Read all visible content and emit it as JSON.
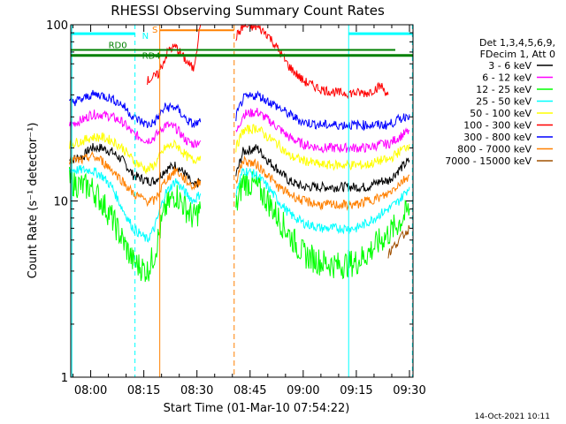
{
  "chart_data": {
    "type": "line",
    "title": "RHESSI Observing Summary Count Rates",
    "xlabel": "Start Time (01-Mar-10 07:54:22)",
    "ylabel": "Count Rate (s⁻¹ detector⁻¹)",
    "yscale": "log",
    "xlim": [
      "07:54:22",
      "09:31:00"
    ],
    "ylim": [
      1,
      100
    ],
    "x_ticks": [
      "08:00",
      "08:15",
      "08:30",
      "08:45",
      "09:00",
      "09:15",
      "09:30"
    ],
    "y_ticks": [
      "1",
      "10",
      "100"
    ],
    "grid": false,
    "legend_position": "right",
    "legend_header": [
      "Det 1,3,4,5,6,9,",
      "FDecim 1, Att 0"
    ],
    "series": [
      {
        "name": "3 - 6 keV",
        "color": "#000000",
        "x": [
          "07:54",
          "07:58",
          "08:00",
          "08:03",
          "08:06",
          "08:09",
          "08:12",
          "08:16",
          "08:18",
          "08:21",
          "08:24",
          "08:27",
          "08:29",
          "08:31",
          "08:38",
          "08:41",
          "08:43",
          "08:47",
          "08:50",
          "08:53",
          "08:56",
          "09:00",
          "09:05",
          "09:10",
          "09:15",
          "09:18",
          "09:22",
          "09:24",
          "09:27",
          "09:30"
        ],
        "values": [
          17,
          18,
          20,
          20,
          19,
          17,
          14,
          13,
          13,
          15,
          16,
          14,
          12,
          13,
          null,
          14,
          19,
          20,
          17,
          15,
          13,
          12,
          12,
          12,
          12,
          12,
          13,
          13,
          15,
          17
        ]
      },
      {
        "name": "6 - 12 keV",
        "color": "#ff00ff",
        "x": [
          "07:54",
          "07:58",
          "08:00",
          "08:03",
          "08:06",
          "08:09",
          "08:12",
          "08:16",
          "08:18",
          "08:21",
          "08:24",
          "08:27",
          "08:29",
          "08:31",
          "08:38",
          "08:41",
          "08:43",
          "08:47",
          "08:50",
          "08:53",
          "08:56",
          "09:00",
          "09:05",
          "09:10",
          "09:15",
          "09:18",
          "09:22",
          "09:24",
          "09:27",
          "09:30"
        ],
        "values": [
          27,
          29,
          31,
          31,
          30,
          28,
          24,
          22,
          23,
          27,
          26,
          22,
          21,
          22,
          null,
          24,
          31,
          32,
          29,
          26,
          23,
          21,
          20,
          20,
          20,
          20,
          21,
          21,
          23,
          25
        ]
      },
      {
        "name": "12 - 25 keV",
        "color": "#00ff00",
        "x": [
          "07:54",
          "07:58",
          "08:00",
          "08:03",
          "08:06",
          "08:09",
          "08:12",
          "08:16",
          "08:18",
          "08:21",
          "08:24",
          "08:27",
          "08:29",
          "08:31",
          "08:38",
          "08:41",
          "08:43",
          "08:47",
          "08:50",
          "08:53",
          "08:56",
          "09:00",
          "09:05",
          "09:10",
          "09:15",
          "09:18",
          "09:22",
          "09:24",
          "09:27",
          "09:30"
        ],
        "values": [
          13,
          12,
          12,
          10,
          8,
          6,
          4.5,
          4,
          5,
          9,
          11,
          9,
          8,
          9,
          null,
          9,
          13,
          12,
          10,
          8,
          6.5,
          5,
          4.5,
          4.3,
          4.5,
          5,
          6,
          6.5,
          7.5,
          9
        ]
      },
      {
        "name": "25 - 50 keV",
        "color": "#00ffff",
        "x": [
          "07:54",
          "07:58",
          "08:00",
          "08:03",
          "08:06",
          "08:09",
          "08:12",
          "08:16",
          "08:18",
          "08:21",
          "08:24",
          "08:27",
          "08:29",
          "08:31",
          "08:38",
          "08:41",
          "08:43",
          "08:47",
          "08:50",
          "08:53",
          "08:56",
          "09:00",
          "09:05",
          "09:10",
          "09:15",
          "09:18",
          "09:22",
          "09:24",
          "09:27",
          "09:30"
        ],
        "values": [
          15,
          15,
          15,
          14,
          12,
          9,
          7,
          6,
          7,
          11,
          13,
          11,
          10,
          11,
          null,
          11,
          15,
          14,
          12,
          10,
          8.5,
          7.5,
          7,
          7,
          7,
          7.5,
          8.5,
          9,
          10,
          12
        ]
      },
      {
        "name": "50 - 100 keV",
        "color": "#ffff00",
        "x": [
          "07:54",
          "07:58",
          "08:00",
          "08:03",
          "08:06",
          "08:09",
          "08:12",
          "08:16",
          "08:18",
          "08:21",
          "08:24",
          "08:27",
          "08:29",
          "08:31",
          "08:38",
          "08:41",
          "08:43",
          "08:47",
          "08:50",
          "08:53",
          "08:56",
          "09:00",
          "09:05",
          "09:10",
          "09:15",
          "09:18",
          "09:22",
          "09:24",
          "09:27",
          "09:30"
        ],
        "values": [
          21,
          22,
          23,
          23,
          22,
          20,
          17,
          15,
          16,
          20,
          21,
          18,
          17,
          18,
          null,
          20,
          25,
          26,
          23,
          21,
          18,
          17,
          16,
          16,
          16,
          16,
          17,
          17,
          19,
          21
        ]
      },
      {
        "name": "100 - 300 keV",
        "color": "#ff0000",
        "x": [
          "08:16",
          "08:19",
          "08:22",
          "08:24",
          "08:27",
          "08:29",
          "08:31",
          "08:38",
          "08:41",
          "08:43",
          "08:47",
          "08:50",
          "08:53",
          "08:56",
          "09:00",
          "09:05",
          "09:10",
          "09:15",
          "09:18",
          "09:22",
          "09:24"
        ],
        "values": [
          48,
          52,
          72,
          75,
          62,
          56,
          100,
          null,
          85,
          98,
          97,
          88,
          72,
          58,
          48,
          43,
          41,
          41,
          41,
          45,
          40
        ]
      },
      {
        "name": "300 - 800 keV",
        "color": "#0000ff",
        "x": [
          "07:54",
          "07:58",
          "08:00",
          "08:03",
          "08:06",
          "08:09",
          "08:12",
          "08:16",
          "08:18",
          "08:21",
          "08:24",
          "08:27",
          "08:29",
          "08:31",
          "08:38",
          "08:41",
          "08:43",
          "08:47",
          "08:50",
          "08:53",
          "08:56",
          "09:00",
          "09:05",
          "09:10",
          "09:15",
          "09:18",
          "09:22",
          "09:24",
          "09:27",
          "09:30"
        ],
        "values": [
          36,
          38,
          40,
          40,
          38,
          35,
          30,
          27,
          28,
          34,
          34,
          29,
          27,
          28,
          null,
          30,
          38,
          40,
          37,
          34,
          31,
          28,
          27,
          27,
          27,
          27,
          27,
          27,
          29,
          31
        ]
      },
      {
        "name": "800 - 7000 keV",
        "color": "#ff8000",
        "x": [
          "07:54",
          "07:58",
          "08:00",
          "08:03",
          "08:06",
          "08:09",
          "08:12",
          "08:16",
          "08:18",
          "08:21",
          "08:24",
          "08:27",
          "08:29",
          "08:31",
          "08:38",
          "08:41",
          "08:43",
          "08:47",
          "08:50",
          "08:53",
          "08:56",
          "09:00",
          "09:05",
          "09:10",
          "09:15",
          "09:18",
          "09:22",
          "09:24",
          "09:27",
          "09:30"
        ],
        "values": [
          17,
          17,
          18,
          17,
          15,
          13,
          11,
          10,
          10,
          13,
          15,
          13,
          12,
          13,
          null,
          13,
          17,
          16,
          14,
          12,
          11,
          10,
          9.5,
          9.5,
          9.5,
          10,
          10.5,
          11,
          12.5,
          14
        ]
      },
      {
        "name": "7000 - 15000 keV",
        "color": "#a05000",
        "x": [
          "09:24",
          "09:27",
          "09:30"
        ],
        "values": [
          5,
          6,
          7
        ]
      }
    ],
    "annotations": [
      {
        "label": "RD0",
        "type": "dark green bar"
      },
      {
        "label": "RD4",
        "type": "dark green bar"
      },
      {
        "label": "N",
        "type": "cyan night bar"
      },
      {
        "label": "S",
        "type": "orange SAA bar"
      }
    ]
  },
  "footer": {
    "date": "14-Oct-2021 10:11"
  },
  "colors": {
    "dark_green": "#008000",
    "cyan": "#00ffff",
    "orange": "#ff8000",
    "axis": "#000000"
  }
}
